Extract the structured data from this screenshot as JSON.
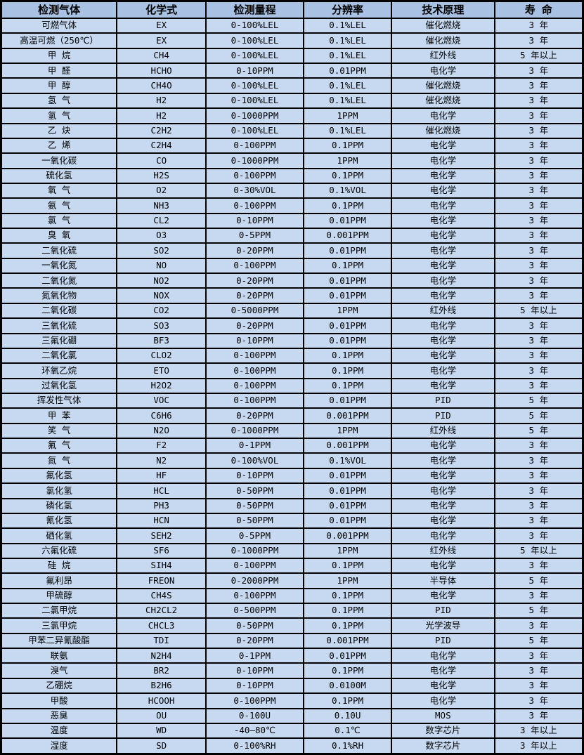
{
  "table": {
    "name": "gas-sensor-spec-table",
    "colors": {
      "header_bg": "#a9c2e4",
      "row_bg": "#c6d9f1",
      "border": "#000000",
      "text": "#000000"
    },
    "headers": [
      "检测气体",
      "化学式",
      "检测量程",
      "分辨率",
      "技术原理",
      "寿  命"
    ],
    "rows": [
      {
        "gas": "可燃气体",
        "formula": "EX",
        "range": "0-100%LEL",
        "resolution": "0.1%LEL",
        "principle": "催化燃烧",
        "lifespan": "3 年"
      },
      {
        "gas": "高温可燃（250℃）",
        "formula": "EX",
        "range": "0-100%LEL",
        "resolution": "0.1%LEL",
        "principle": "催化燃烧",
        "lifespan": "3 年"
      },
      {
        "gas": "甲  烷",
        "formula": "CH4",
        "range": "0-100%LEL",
        "resolution": "0.1%LEL",
        "principle": "红外线",
        "lifespan": "5 年以上"
      },
      {
        "gas": "甲  醛",
        "formula": "HCHO",
        "range": "0-10PPM",
        "resolution": "0.01PPM",
        "principle": "电化学",
        "lifespan": "3 年"
      },
      {
        "gas": "甲  醇",
        "formula": "CH4O",
        "range": "0-100%LEL",
        "resolution": "0.1%LEL",
        "principle": "催化燃烧",
        "lifespan": "3 年"
      },
      {
        "gas": "氢  气",
        "formula": "H2",
        "range": "0-100%LEL",
        "resolution": "0.1%LEL",
        "principle": "催化燃烧",
        "lifespan": "3 年"
      },
      {
        "gas": "氢  气",
        "formula": "H2",
        "range": "0-1000PPM",
        "resolution": "1PPM",
        "principle": "电化学",
        "lifespan": "3 年"
      },
      {
        "gas": "乙  炔",
        "formula": "C2H2",
        "range": "0-100%LEL",
        "resolution": "0.1%LEL",
        "principle": "催化燃烧",
        "lifespan": "3 年"
      },
      {
        "gas": "乙  烯",
        "formula": "C2H4",
        "range": "0-100PPM",
        "resolution": "0.1PPM",
        "principle": "电化学",
        "lifespan": "3 年"
      },
      {
        "gas": "一氧化碳",
        "formula": "CO",
        "range": "0-1000PPM",
        "resolution": "1PPM",
        "principle": "电化学",
        "lifespan": "3 年"
      },
      {
        "gas": "硫化氢",
        "formula": "H2S",
        "range": "0-100PPM",
        "resolution": "0.1PPM",
        "principle": "电化学",
        "lifespan": "3 年"
      },
      {
        "gas": "氧  气",
        "formula": "O2",
        "range": "0-30%VOL",
        "resolution": "0.1%VOL",
        "principle": "电化学",
        "lifespan": "3 年"
      },
      {
        "gas": "氨  气",
        "formula": "NH3",
        "range": "0-100PPM",
        "resolution": "0.1PPM",
        "principle": "电化学",
        "lifespan": "3 年"
      },
      {
        "gas": "氯  气",
        "formula": "CL2",
        "range": "0-10PPM",
        "resolution": "0.01PPM",
        "principle": "电化学",
        "lifespan": "3 年"
      },
      {
        "gas": "臭  氧",
        "formula": "O3",
        "range": "0-5PPM",
        "resolution": "0.001PPM",
        "principle": "电化学",
        "lifespan": "3 年"
      },
      {
        "gas": "二氧化硫",
        "formula": "SO2",
        "range": "0-20PPM",
        "resolution": "0.01PPM",
        "principle": "电化学",
        "lifespan": "3 年"
      },
      {
        "gas": "一氧化氮",
        "formula": "NO",
        "range": "0-100PPM",
        "resolution": "0.1PPM",
        "principle": "电化学",
        "lifespan": "3 年"
      },
      {
        "gas": "二氧化氮",
        "formula": "NO2",
        "range": "0-20PPM",
        "resolution": "0.01PPM",
        "principle": "电化学",
        "lifespan": "3 年"
      },
      {
        "gas": "氮氧化物",
        "formula": "NOX",
        "range": "0-20PPM",
        "resolution": "0.01PPM",
        "principle": "电化学",
        "lifespan": "3 年"
      },
      {
        "gas": "二氧化碳",
        "formula": "CO2",
        "range": "0-5000PPM",
        "resolution": "1PPM",
        "principle": "红外线",
        "lifespan": "5 年以上"
      },
      {
        "gas": "三氧化硫",
        "formula": "SO3",
        "range": "0-20PPM",
        "resolution": "0.01PPM",
        "principle": "电化学",
        "lifespan": "3 年"
      },
      {
        "gas": "三氟化硼",
        "formula": "BF3",
        "range": "0-10PPM",
        "resolution": "0.01PPM",
        "principle": "电化学",
        "lifespan": "3 年"
      },
      {
        "gas": "二氧化氯",
        "formula": "CLO2",
        "range": "0-100PPM",
        "resolution": "0.1PPM",
        "principle": "电化学",
        "lifespan": "3 年"
      },
      {
        "gas": "环氧乙烷",
        "formula": "ETO",
        "range": "0-100PPM",
        "resolution": "0.1PPM",
        "principle": "电化学",
        "lifespan": "3 年"
      },
      {
        "gas": "过氧化氢",
        "formula": "H2O2",
        "range": "0-100PPM",
        "resolution": "0.1PPM",
        "principle": "电化学",
        "lifespan": "3 年"
      },
      {
        "gas": "挥发性气体",
        "formula": "VOC",
        "range": "0-100PPM",
        "resolution": "0.01PPM",
        "principle": "PID",
        "lifespan": "5 年"
      },
      {
        "gas": "甲  苯",
        "formula": "C6H6",
        "range": "0-20PPM",
        "resolution": "0.001PPM",
        "principle": "PID",
        "lifespan": "5 年"
      },
      {
        "gas": "笑  气",
        "formula": "N2O",
        "range": "0-1000PPM",
        "resolution": "1PPM",
        "principle": "红外线",
        "lifespan": "5 年"
      },
      {
        "gas": "氟  气",
        "formula": "F2",
        "range": "0-1PPM",
        "resolution": "0.001PPM",
        "principle": "电化学",
        "lifespan": "3 年"
      },
      {
        "gas": "氮  气",
        "formula": "N2",
        "range": "0-100%VOL",
        "resolution": "0.1%VOL",
        "principle": "电化学",
        "lifespan": "3 年"
      },
      {
        "gas": "氟化氢",
        "formula": "HF",
        "range": "0-10PPM",
        "resolution": "0.01PPM",
        "principle": "电化学",
        "lifespan": "3 年"
      },
      {
        "gas": "氯化氢",
        "formula": "HCL",
        "range": "0-50PPM",
        "resolution": "0.01PPM",
        "principle": "电化学",
        "lifespan": "3 年"
      },
      {
        "gas": "磷化氢",
        "formula": "PH3",
        "range": "0-50PPM",
        "resolution": "0.01PPM",
        "principle": "电化学",
        "lifespan": "3 年"
      },
      {
        "gas": "氰化氢",
        "formula": "HCN",
        "range": "0-50PPM",
        "resolution": "0.01PPM",
        "principle": "电化学",
        "lifespan": "3 年"
      },
      {
        "gas": "硒化氢",
        "formula": "SEH2",
        "range": "0-5PPM",
        "resolution": "0.001PPM",
        "principle": "电化学",
        "lifespan": "3 年"
      },
      {
        "gas": "六氟化硫",
        "formula": "SF6",
        "range": "0-1000PPM",
        "resolution": "1PPM",
        "principle": "红外线",
        "lifespan": "5 年以上"
      },
      {
        "gas": "硅  烷",
        "formula": "SIH4",
        "range": "0-100PPM",
        "resolution": "0.1PPM",
        "principle": "电化学",
        "lifespan": "3 年"
      },
      {
        "gas": "氟利昂",
        "formula": "FREON",
        "range": "0-2000PPM",
        "resolution": "1PPM",
        "principle": "半导体",
        "lifespan": "5 年"
      },
      {
        "gas": "甲硫醇",
        "formula": "CH4S",
        "range": "0-100PPM",
        "resolution": "0.1PPM",
        "principle": "电化学",
        "lifespan": "3 年"
      },
      {
        "gas": "二氯甲烷",
        "formula": "CH2CL2",
        "range": "0-500PPM",
        "resolution": "0.1PPM",
        "principle": "PID",
        "lifespan": "5 年"
      },
      {
        "gas": "三氯甲烷",
        "formula": "CHCL3",
        "range": "0-50PPM",
        "resolution": "0.1PPM",
        "principle": "光学波导",
        "lifespan": "3 年"
      },
      {
        "gas": "甲苯二异氰酸酯",
        "formula": "TDI",
        "range": "0-20PPM",
        "resolution": "0.001PPM",
        "principle": "PID",
        "lifespan": "5 年"
      },
      {
        "gas": "联氨",
        "formula": "N2H4",
        "range": "0-1PPM",
        "resolution": "0.01PPM",
        "principle": "电化学",
        "lifespan": "3 年"
      },
      {
        "gas": "溴气",
        "formula": "BR2",
        "range": "0-10PPM",
        "resolution": "0.1PPM",
        "principle": "电化学",
        "lifespan": "3 年"
      },
      {
        "gas": "乙硼烷",
        "formula": "B2H6",
        "range": "0-10PPM",
        "resolution": "0.0100M",
        "principle": "电化学",
        "lifespan": "3 年"
      },
      {
        "gas": "甲酸",
        "formula": "HCOOH",
        "range": "0-100PPM",
        "resolution": "0.1PPM",
        "principle": "电化学",
        "lifespan": "3 年"
      },
      {
        "gas": "恶臭",
        "formula": "OU",
        "range": "0-100U",
        "resolution": "0.10U",
        "principle": "MOS",
        "lifespan": "3 年"
      },
      {
        "gas": "温度",
        "formula": "WD",
        "range": "-40—80℃",
        "resolution": "0.1℃",
        "principle": "数字芯片",
        "lifespan": "3 年以上"
      },
      {
        "gas": "湿度",
        "formula": "SD",
        "range": "0-100%RH",
        "resolution": "0.1%RH",
        "principle": "数字芯片",
        "lifespan": "3 年以上"
      }
    ]
  }
}
